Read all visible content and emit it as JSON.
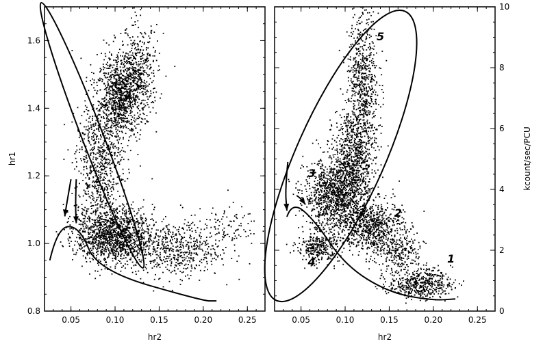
{
  "chart_data": [
    {
      "type": "scatter",
      "title": "",
      "xlabel": "hr2",
      "ylabel": "hr1",
      "xlim": [
        0.02,
        0.27
      ],
      "ylim": [
        0.8,
        1.7
      ],
      "x_ticks": [
        "0.05",
        "0.10",
        "0.15",
        "0.20",
        "0.25"
      ],
      "y_ticks": [
        "0.8",
        "1.0",
        "1.2",
        "1.4",
        "1.6"
      ],
      "grid": false,
      "point_color": "#000000",
      "point_clusters": [
        {
          "x_center": 0.105,
          "y_center": 1.43,
          "x_spread": 0.012,
          "y_spread": 0.06,
          "count": 900
        },
        {
          "x_center": 0.125,
          "y_center": 1.5,
          "x_spread": 0.012,
          "y_spread": 0.07,
          "count": 500
        },
        {
          "x_center": 0.082,
          "y_center": 1.22,
          "x_spread": 0.013,
          "y_spread": 0.11,
          "count": 800
        },
        {
          "x_center": 0.1,
          "y_center": 1.02,
          "x_spread": 0.022,
          "y_spread": 0.04,
          "count": 1300
        },
        {
          "x_center": 0.17,
          "y_center": 0.98,
          "x_spread": 0.025,
          "y_spread": 0.04,
          "count": 500
        },
        {
          "x_center": 0.22,
          "y_center": 1.05,
          "x_spread": 0.022,
          "y_spread": 0.03,
          "count": 120
        }
      ],
      "annotations": [
        {
          "kind": "ellipse",
          "cx": 0.074,
          "cy": 1.32,
          "rx": 0.012,
          "ry": 0.42,
          "rotation_deg": -21
        },
        {
          "kind": "curve",
          "points": [
            [
              0.026,
              0.95
            ],
            [
              0.035,
              1.05
            ],
            [
              0.06,
              1.05
            ],
            [
              0.08,
              0.92
            ],
            [
              0.2,
              0.83
            ],
            [
              0.215,
              0.83
            ]
          ]
        },
        {
          "kind": "arrow",
          "points": [
            [
              0.05,
              1.19
            ],
            [
              0.044,
              1.1
            ],
            [
              0.043,
              1.08
            ]
          ]
        },
        {
          "kind": "arrow",
          "points": [
            [
              0.056,
              1.19
            ],
            [
              0.055,
              1.12
            ],
            [
              0.056,
              1.06
            ]
          ]
        }
      ]
    },
    {
      "type": "scatter",
      "title": "",
      "xlabel": "hr2",
      "ylabel": "kcount/sec/PCU",
      "xlim": [
        0.02,
        0.27
      ],
      "ylim": [
        0,
        10
      ],
      "x_ticks": [
        "0.05",
        "0.10",
        "0.15",
        "0.20",
        "0.25"
      ],
      "y_ticks": [
        "0",
        "2",
        "4",
        "6",
        "8",
        "10"
      ],
      "grid": false,
      "point_color": "#000000",
      "point_clusters": [
        {
          "x_center": 0.12,
          "y_center": 7.5,
          "x_spread": 0.009,
          "y_spread": 1.2,
          "count": 700
        },
        {
          "x_center": 0.11,
          "y_center": 5.0,
          "x_spread": 0.012,
          "y_spread": 0.8,
          "count": 700
        },
        {
          "x_center": 0.09,
          "y_center": 3.8,
          "x_spread": 0.018,
          "y_spread": 0.6,
          "count": 1200
        },
        {
          "x_center": 0.13,
          "y_center": 2.8,
          "x_spread": 0.018,
          "y_spread": 0.4,
          "count": 700
        },
        {
          "x_center": 0.07,
          "y_center": 2.1,
          "x_spread": 0.012,
          "y_spread": 0.25,
          "count": 300
        },
        {
          "x_center": 0.185,
          "y_center": 0.9,
          "x_spread": 0.018,
          "y_spread": 0.25,
          "count": 500
        },
        {
          "x_center": 0.16,
          "y_center": 1.9,
          "x_spread": 0.015,
          "y_spread": 0.3,
          "count": 250
        }
      ],
      "annotations": [
        {
          "kind": "ellipse",
          "cx": 0.095,
          "cy": 5.1,
          "rx": 0.05,
          "ry": 5.2,
          "rotation_deg": 24
        },
        {
          "kind": "curve",
          "points": [
            [
              0.034,
              3.1
            ],
            [
              0.04,
              3.6
            ],
            [
              0.065,
              3.0
            ],
            [
              0.1,
              1.5
            ],
            [
              0.15,
              0.6
            ],
            [
              0.2,
              0.35
            ],
            [
              0.225,
              0.4
            ]
          ]
        },
        {
          "kind": "arrow",
          "points": [
            [
              0.045,
              3.8
            ],
            [
              0.05,
              3.7
            ],
            [
              0.055,
              3.5
            ]
          ]
        },
        {
          "kind": "arrow",
          "points": [
            [
              0.035,
              4.9
            ],
            [
              0.032,
              4.0
            ],
            [
              0.034,
              3.3
            ]
          ]
        }
      ],
      "region_labels": [
        {
          "text": "1",
          "x": 0.22,
          "y": 1.6
        },
        {
          "text": "2",
          "x": 0.16,
          "y": 3.1
        },
        {
          "text": "3",
          "x": 0.062,
          "y": 4.4
        },
        {
          "text": "4",
          "x": 0.062,
          "y": 1.5
        },
        {
          "text": "5",
          "x": 0.14,
          "y": 8.9
        }
      ]
    }
  ]
}
